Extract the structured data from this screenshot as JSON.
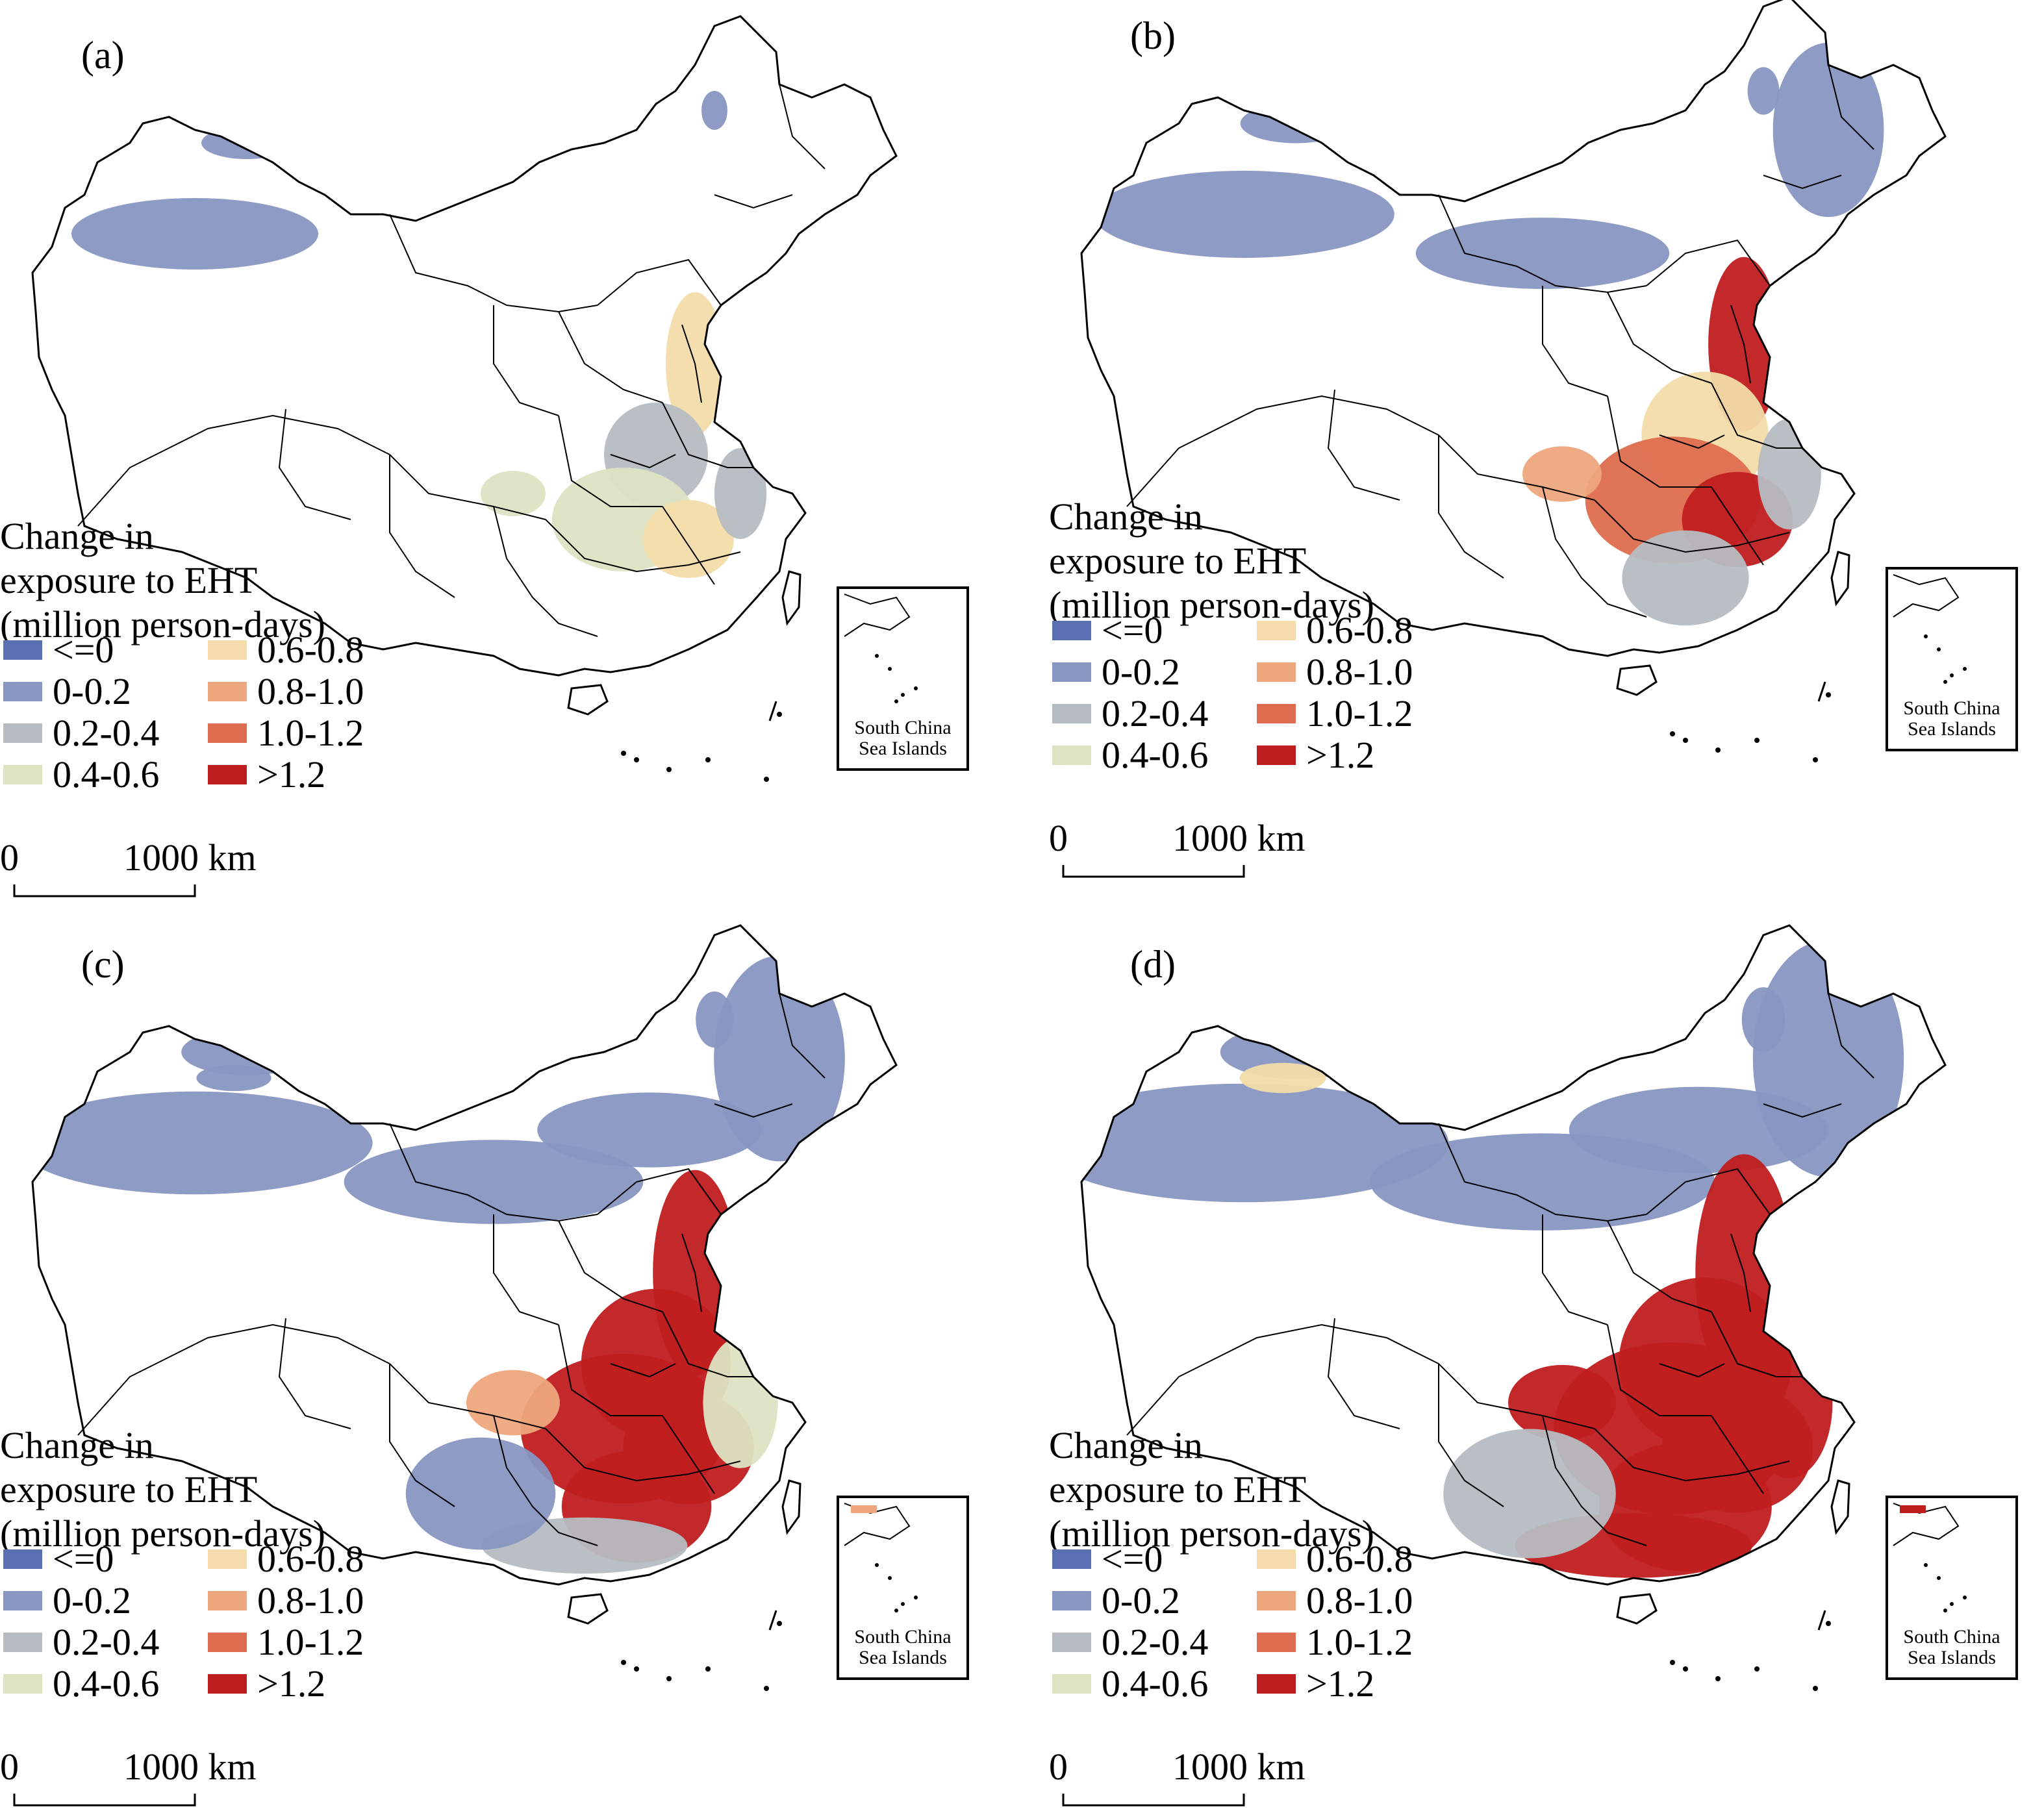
{
  "legend": {
    "title_lines": [
      "Change in",
      "exposure to EHT",
      "(million person-days)"
    ],
    "classes": [
      {
        "label": "<=0",
        "color": "#5b6fb3"
      },
      {
        "label": "0-0.2",
        "color": "#8896c2"
      },
      {
        "label": "0.2-0.4",
        "color": "#b6bcc2"
      },
      {
        "label": "0.4-0.6",
        "color": "#dde3c3"
      },
      {
        "label": "0.6-0.8",
        "color": "#f3dca9"
      },
      {
        "label": "0.8-1.0",
        "color": "#eea67c"
      },
      {
        "label": "1.0-1.2",
        "color": "#dd6d4e"
      },
      {
        "label": ">1.2",
        "color": "#c01d1f"
      }
    ]
  },
  "scale_bar": {
    "start_label": "0",
    "end_label": "1000 km"
  },
  "inset": {
    "line1": "South China",
    "line2": "Sea Islands"
  },
  "panels": [
    {
      "label": "(a)",
      "intensity": 0
    },
    {
      "label": "(b)",
      "intensity": 1
    },
    {
      "label": "(c)",
      "intensity": 2
    },
    {
      "label": "(d)",
      "intensity": 3
    }
  ]
}
